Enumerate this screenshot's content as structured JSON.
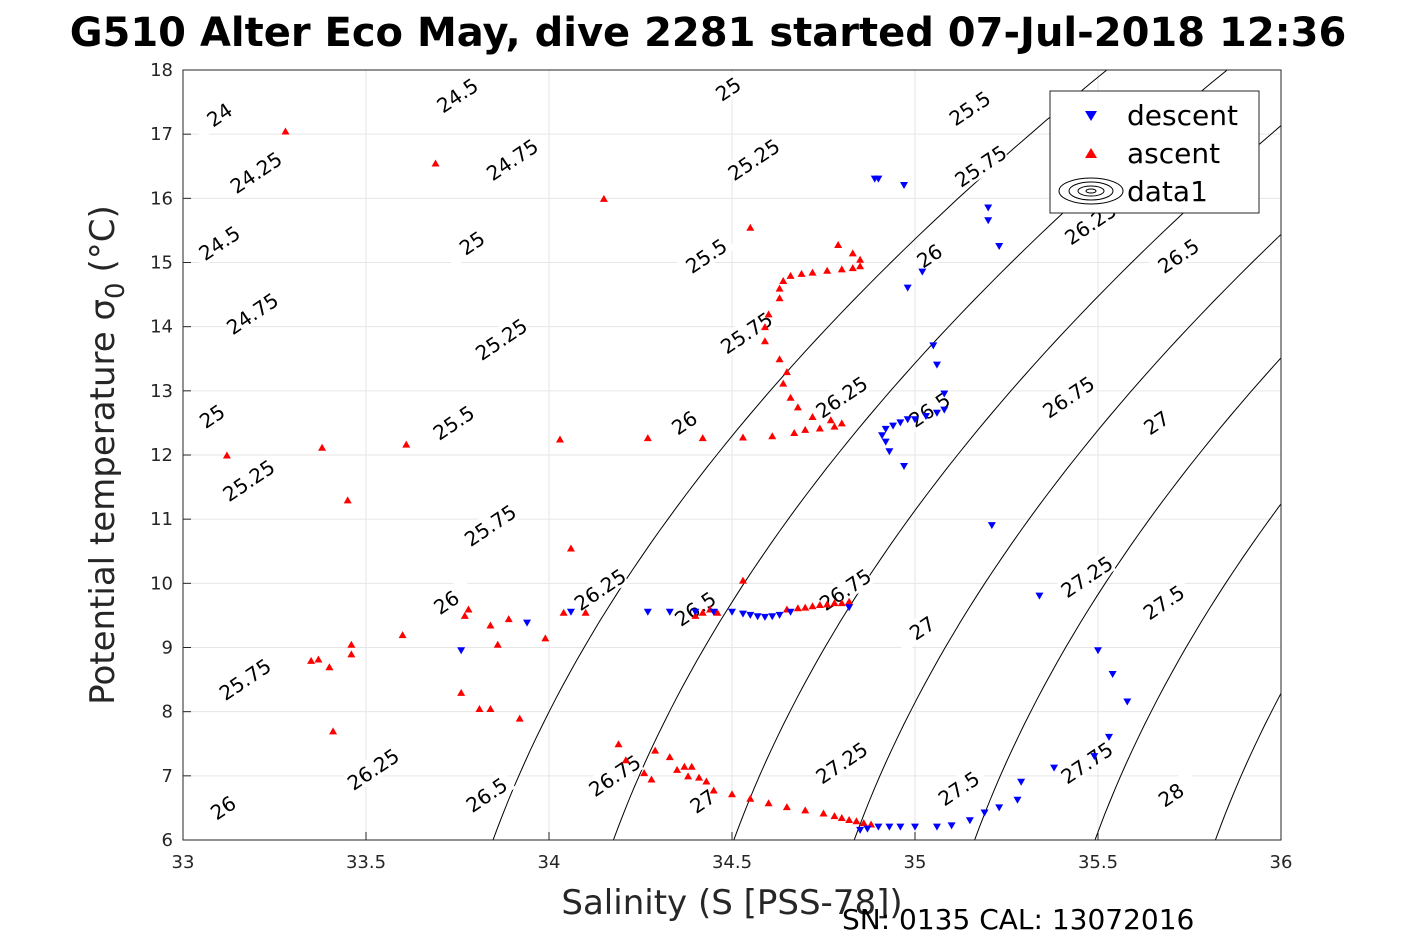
{
  "chart_data": {
    "type": "scatter",
    "title": "G510 Alter Eco May, dive 2281 started 07-Jul-2018 12:36",
    "xlabel": "Salinity (S [PSS-78])",
    "ylabel": "Potential temperature σ",
    "ylabel_sub": "0",
    "ylabel_unit": "(°C)",
    "footer": "SN: 0135  CAL: 13072016",
    "xlim": [
      33,
      36
    ],
    "ylim": [
      6,
      18
    ],
    "xticks": [
      "33",
      "33.5",
      "34",
      "34.5",
      "35",
      "35.5",
      "36"
    ],
    "yticks": [
      "6",
      "7",
      "8",
      "9",
      "10",
      "11",
      "12",
      "13",
      "14",
      "15",
      "16",
      "17",
      "18"
    ],
    "grid": true,
    "legend_position": "top-right",
    "legend": [
      "descent",
      "ascent",
      "data1"
    ],
    "colors": {
      "descent": "#0000ff",
      "ascent": "#ff0000",
      "contour": "#000000",
      "grid": "#e6e6e6"
    },
    "contour_levels": [
      "24",
      "24.25",
      "24.5",
      "24.75",
      "25",
      "25.25",
      "25.5",
      "25.75",
      "26",
      "26.25",
      "26.5",
      "26.75",
      "27",
      "27.25",
      "27.5",
      "27.75",
      "28"
    ],
    "contour_labels": [
      {
        "text": "24",
        "x": 33.1,
        "y": 17.3
      },
      {
        "text": "24.25",
        "x": 33.2,
        "y": 16.4
      },
      {
        "text": "24.5",
        "x": 33.1,
        "y": 15.3
      },
      {
        "text": "24.75",
        "x": 33.19,
        "y": 14.2
      },
      {
        "text": "25",
        "x": 33.08,
        "y": 12.6
      },
      {
        "text": "25.25",
        "x": 33.18,
        "y": 11.6
      },
      {
        "text": "25.75",
        "x": 33.17,
        "y": 8.5
      },
      {
        "text": "26",
        "x": 33.11,
        "y": 6.5
      },
      {
        "text": "24.5",
        "x": 33.75,
        "y": 17.6
      },
      {
        "text": "24.75",
        "x": 33.9,
        "y": 16.6
      },
      {
        "text": "25",
        "x": 33.79,
        "y": 15.3
      },
      {
        "text": "25.25",
        "x": 33.87,
        "y": 13.8
      },
      {
        "text": "25.5",
        "x": 33.74,
        "y": 12.5
      },
      {
        "text": "25.75",
        "x": 33.84,
        "y": 10.9
      },
      {
        "text": "26",
        "x": 33.72,
        "y": 9.7
      },
      {
        "text": "26.25",
        "x": 33.52,
        "y": 7.1
      },
      {
        "text": "26.5",
        "x": 33.83,
        "y": 6.7
      },
      {
        "text": "25",
        "x": 34.49,
        "y": 17.7
      },
      {
        "text": "25.25",
        "x": 34.56,
        "y": 16.6
      },
      {
        "text": "25.5",
        "x": 34.43,
        "y": 15.1
      },
      {
        "text": "25.75",
        "x": 34.54,
        "y": 13.9
      },
      {
        "text": "26",
        "x": 34.37,
        "y": 12.5
      },
      {
        "text": "26.25",
        "x": 34.14,
        "y": 9.9
      },
      {
        "text": "26.5",
        "x": 34.4,
        "y": 9.6
      },
      {
        "text": "26.75",
        "x": 34.18,
        "y": 7.0
      },
      {
        "text": "27",
        "x": 34.42,
        "y": 6.6
      },
      {
        "text": "25.5",
        "x": 35.15,
        "y": 17.4
      },
      {
        "text": "25.75",
        "x": 35.18,
        "y": 16.5
      },
      {
        "text": "26",
        "x": 35.04,
        "y": 15.1
      },
      {
        "text": "26.25",
        "x": 34.8,
        "y": 12.9
      },
      {
        "text": "26.5",
        "x": 35.04,
        "y": 12.7
      },
      {
        "text": "26.75",
        "x": 34.81,
        "y": 9.9
      },
      {
        "text": "27",
        "x": 35.02,
        "y": 9.3
      },
      {
        "text": "27.25",
        "x": 34.8,
        "y": 7.2
      },
      {
        "text": "27.5",
        "x": 35.12,
        "y": 6.8
      },
      {
        "text": "26.25",
        "x": 35.48,
        "y": 15.6
      },
      {
        "text": "26.5",
        "x": 35.72,
        "y": 15.1
      },
      {
        "text": "26.75",
        "x": 35.42,
        "y": 12.9
      },
      {
        "text": "27",
        "x": 35.66,
        "y": 12.5
      },
      {
        "text": "27.25",
        "x": 35.47,
        "y": 10.1
      },
      {
        "text": "27.5",
        "x": 35.68,
        "y": 9.7
      },
      {
        "text": "27.75",
        "x": 35.47,
        "y": 7.2
      },
      {
        "text": "28",
        "x": 35.7,
        "y": 6.7
      }
    ],
    "series": [
      {
        "name": "descent",
        "marker": "triangle-down",
        "points": [
          [
            34.89,
            16.3
          ],
          [
            34.9,
            16.3
          ],
          [
            34.97,
            16.2
          ],
          [
            35.2,
            15.85
          ],
          [
            35.2,
            15.65
          ],
          [
            35.23,
            15.25
          ],
          [
            35.02,
            14.85
          ],
          [
            34.98,
            14.6
          ],
          [
            35.05,
            13.7
          ],
          [
            35.06,
            13.4
          ],
          [
            35.08,
            12.95
          ],
          [
            34.92,
            12.4
          ],
          [
            34.94,
            12.45
          ],
          [
            34.96,
            12.5
          ],
          [
            34.98,
            12.55
          ],
          [
            35.0,
            12.55
          ],
          [
            35.03,
            12.6
          ],
          [
            35.06,
            12.65
          ],
          [
            35.08,
            12.7
          ],
          [
            34.91,
            12.3
          ],
          [
            34.92,
            12.2
          ],
          [
            34.93,
            12.05
          ],
          [
            34.97,
            11.82
          ],
          [
            35.21,
            10.9
          ],
          [
            35.34,
            9.8
          ],
          [
            33.76,
            8.95
          ],
          [
            33.94,
            9.38
          ],
          [
            34.06,
            9.55
          ],
          [
            34.27,
            9.55
          ],
          [
            34.33,
            9.55
          ],
          [
            34.4,
            9.55
          ],
          [
            34.45,
            9.55
          ],
          [
            34.5,
            9.55
          ],
          [
            34.53,
            9.52
          ],
          [
            34.55,
            9.5
          ],
          [
            34.57,
            9.48
          ],
          [
            34.59,
            9.47
          ],
          [
            34.61,
            9.48
          ],
          [
            34.63,
            9.5
          ],
          [
            34.66,
            9.55
          ],
          [
            34.82,
            9.62
          ],
          [
            35.5,
            8.95
          ],
          [
            35.54,
            8.58
          ],
          [
            35.58,
            8.15
          ],
          [
            35.53,
            7.6
          ],
          [
            35.49,
            7.3
          ],
          [
            35.38,
            7.12
          ],
          [
            35.29,
            6.9
          ],
          [
            35.28,
            6.62
          ],
          [
            35.23,
            6.5
          ],
          [
            35.19,
            6.42
          ],
          [
            35.15,
            6.3
          ],
          [
            35.1,
            6.22
          ],
          [
            35.06,
            6.2
          ],
          [
            35.0,
            6.2
          ],
          [
            34.96,
            6.2
          ],
          [
            34.93,
            6.2
          ],
          [
            34.9,
            6.2
          ],
          [
            34.87,
            6.17
          ],
          [
            34.85,
            6.15
          ]
        ]
      },
      {
        "name": "ascent",
        "marker": "triangle-up",
        "points": [
          [
            33.28,
            17.05
          ],
          [
            33.69,
            16.55
          ],
          [
            34.15,
            16.0
          ],
          [
            34.55,
            15.55
          ],
          [
            34.79,
            15.28
          ],
          [
            34.83,
            15.15
          ],
          [
            34.85,
            15.05
          ],
          [
            34.85,
            14.95
          ],
          [
            34.83,
            14.92
          ],
          [
            34.8,
            14.9
          ],
          [
            34.76,
            14.88
          ],
          [
            34.72,
            14.85
          ],
          [
            34.69,
            14.83
          ],
          [
            34.66,
            14.8
          ],
          [
            34.64,
            14.72
          ],
          [
            34.63,
            14.6
          ],
          [
            34.63,
            14.45
          ],
          [
            34.6,
            14.2
          ],
          [
            34.59,
            14.0
          ],
          [
            34.59,
            13.78
          ],
          [
            34.63,
            13.5
          ],
          [
            34.65,
            13.3
          ],
          [
            34.64,
            13.12
          ],
          [
            34.66,
            12.9
          ],
          [
            34.68,
            12.75
          ],
          [
            34.72,
            12.6
          ],
          [
            34.77,
            12.55
          ],
          [
            34.8,
            12.5
          ],
          [
            34.78,
            12.45
          ],
          [
            34.74,
            12.42
          ],
          [
            34.7,
            12.4
          ],
          [
            34.67,
            12.35
          ],
          [
            34.61,
            12.3
          ],
          [
            34.53,
            12.28
          ],
          [
            34.42,
            12.27
          ],
          [
            34.27,
            12.27
          ],
          [
            34.03,
            12.25
          ],
          [
            33.12,
            12.0
          ],
          [
            33.38,
            12.12
          ],
          [
            33.61,
            12.17
          ],
          [
            33.45,
            11.3
          ],
          [
            34.06,
            10.55
          ],
          [
            34.53,
            10.05
          ],
          [
            34.04,
            9.55
          ],
          [
            34.1,
            9.55
          ],
          [
            33.78,
            9.6
          ],
          [
            33.77,
            9.5
          ],
          [
            33.89,
            9.45
          ],
          [
            33.99,
            9.15
          ],
          [
            33.84,
            9.35
          ],
          [
            33.86,
            9.05
          ],
          [
            33.6,
            9.2
          ],
          [
            33.46,
            9.05
          ],
          [
            33.46,
            8.9
          ],
          [
            33.35,
            8.8
          ],
          [
            33.37,
            8.82
          ],
          [
            33.4,
            8.7
          ],
          [
            33.76,
            8.3
          ],
          [
            33.81,
            8.05
          ],
          [
            33.84,
            8.05
          ],
          [
            33.92,
            7.9
          ],
          [
            33.41,
            7.7
          ],
          [
            34.4,
            9.5
          ],
          [
            34.42,
            9.55
          ],
          [
            34.44,
            9.6
          ],
          [
            34.46,
            9.55
          ],
          [
            34.65,
            9.6
          ],
          [
            34.68,
            9.62
          ],
          [
            34.7,
            9.63
          ],
          [
            34.72,
            9.65
          ],
          [
            34.74,
            9.67
          ],
          [
            34.76,
            9.68
          ],
          [
            34.78,
            9.7
          ],
          [
            34.8,
            9.7
          ],
          [
            34.82,
            9.72
          ],
          [
            34.19,
            7.5
          ],
          [
            34.21,
            7.25
          ],
          [
            34.26,
            7.05
          ],
          [
            34.28,
            6.95
          ],
          [
            34.29,
            7.4
          ],
          [
            34.33,
            7.3
          ],
          [
            34.35,
            7.1
          ],
          [
            34.37,
            7.15
          ],
          [
            34.39,
            7.15
          ],
          [
            34.38,
            7.0
          ],
          [
            34.41,
            6.98
          ],
          [
            34.43,
            6.92
          ],
          [
            34.45,
            6.78
          ],
          [
            34.5,
            6.72
          ],
          [
            34.55,
            6.65
          ],
          [
            34.6,
            6.58
          ],
          [
            34.65,
            6.52
          ],
          [
            34.7,
            6.47
          ],
          [
            34.75,
            6.42
          ],
          [
            34.78,
            6.38
          ],
          [
            34.8,
            6.35
          ],
          [
            34.82,
            6.32
          ],
          [
            34.84,
            6.3
          ],
          [
            34.86,
            6.27
          ],
          [
            34.88,
            6.25
          ]
        ]
      }
    ]
  }
}
